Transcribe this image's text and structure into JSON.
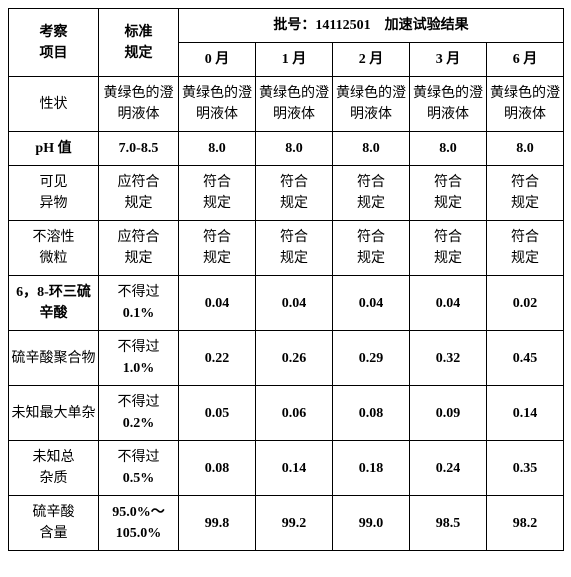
{
  "header": {
    "item_label": "考察\n项目",
    "std_label": "标准\n规定",
    "batch_line": "批号：14112501　加速试验结果",
    "months": [
      "0 月",
      "1 月",
      "2 月",
      "3 月",
      "6 月"
    ]
  },
  "rows": [
    {
      "item": "性状",
      "item_bold": false,
      "std": "黄绿色的澄明液体",
      "std_bold": false,
      "vals": [
        "黄绿色的澄明液体",
        "黄绿色的澄明液体",
        "黄绿色的澄明液体",
        "黄绿色的澄明液体",
        "黄绿色的澄明液体"
      ],
      "vals_bold": false
    },
    {
      "item": "pH 值",
      "item_bold": true,
      "std": "7.0-8.5",
      "std_bold": true,
      "vals": [
        "8.0",
        "8.0",
        "8.0",
        "8.0",
        "8.0"
      ],
      "vals_bold": true
    },
    {
      "item": "可见\n异物",
      "item_bold": false,
      "std": "应符合\n规定",
      "std_bold": false,
      "vals": [
        "符合\n规定",
        "符合\n规定",
        "符合\n规定",
        "符合\n规定",
        "符合\n规定"
      ],
      "vals_bold": false
    },
    {
      "item": "不溶性\n微粒",
      "item_bold": false,
      "std": "应符合\n规定",
      "std_bold": false,
      "vals": [
        "符合\n规定",
        "符合\n规定",
        "符合\n规定",
        "符合\n规定",
        "符合\n规定"
      ],
      "vals_bold": false
    },
    {
      "item": "6，8-环三硫辛酸",
      "item_bold": true,
      "std": "不得过\n0.1%",
      "std_bold_lines": [
        false,
        true
      ],
      "vals": [
        "0.04",
        "0.04",
        "0.04",
        "0.04",
        "0.02"
      ],
      "vals_bold": true
    },
    {
      "item": "硫辛酸聚合物",
      "item_bold": false,
      "std": "不得过\n1.0%",
      "std_bold_lines": [
        false,
        true
      ],
      "vals": [
        "0.22",
        "0.26",
        "0.29",
        "0.32",
        "0.45"
      ],
      "vals_bold": true
    },
    {
      "item": "未知最大单杂",
      "item_bold": false,
      "std": "不得过\n0.2%",
      "std_bold_lines": [
        false,
        true
      ],
      "vals": [
        "0.05",
        "0.06",
        "0.08",
        "0.09",
        "0.14"
      ],
      "vals_bold": true
    },
    {
      "item": "未知总\n杂质",
      "item_bold": false,
      "std": "不得过\n0.5%",
      "std_bold_lines": [
        false,
        true
      ],
      "vals": [
        "0.08",
        "0.14",
        "0.18",
        "0.24",
        "0.35"
      ],
      "vals_bold": true
    },
    {
      "item": "硫辛酸\n含量",
      "item_bold": false,
      "std": "95.0%～\n105.0%",
      "std_bold": true,
      "vals": [
        "99.8",
        "99.2",
        "99.0",
        "98.5",
        "98.2"
      ],
      "vals_bold": true
    }
  ],
  "style": {
    "background_color": "#ffffff",
    "border_color": "#000000",
    "font_size": 14,
    "font_family": "SimSun"
  }
}
